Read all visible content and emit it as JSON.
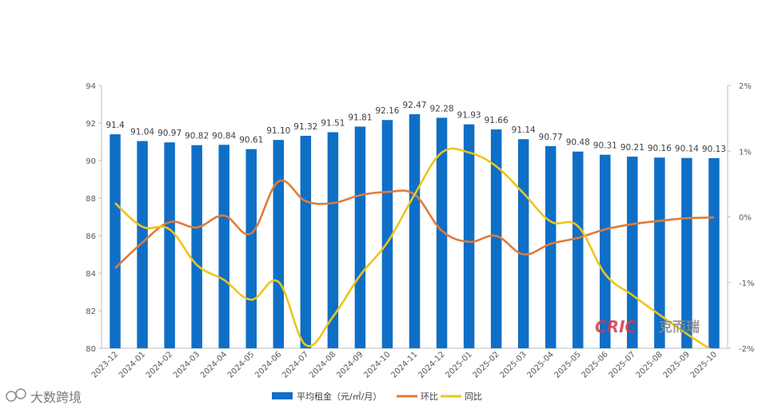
{
  "chart_data": {
    "type": "bar+line",
    "categories": [
      "2023-12",
      "2024-01",
      "2024-02",
      "2024-03",
      "2024-04",
      "2024-05",
      "2024-06",
      "2024-07",
      "2024-08",
      "2024-09",
      "2024-10",
      "2024-11",
      "2024-12",
      "2025-01",
      "2025-02",
      "2025-03",
      "2025-04",
      "2025-05",
      "2025-06",
      "2025-07",
      "2025-08",
      "2025-09",
      "2025-10"
    ],
    "bar_series": {
      "name": "平均租金（元/㎡/月）",
      "values": [
        91.4,
        91.04,
        90.97,
        90.82,
        90.84,
        90.61,
        91.1,
        91.32,
        91.51,
        91.81,
        92.16,
        92.47,
        92.28,
        91.93,
        91.66,
        91.14,
        90.77,
        90.48,
        90.31,
        90.21,
        90.16,
        90.14,
        90.13
      ],
      "labels": [
        "91.4",
        "91.04",
        "90.97",
        "90.82",
        "90.84",
        "90.61",
        "91.10",
        "91.32",
        "91.51",
        "91.81",
        "92.16",
        "92.47",
        "92.28",
        "91.93",
        "91.66",
        "91.14",
        "90.77",
        "90.48",
        "90.31",
        "90.21",
        "90.16",
        "90.14",
        "90.13"
      ],
      "color": "#0f6fc6"
    },
    "line_series": [
      {
        "name": "环比",
        "color": "#e07b39",
        "values": [
          -0.78,
          -0.39,
          -0.08,
          -0.16,
          0.02,
          -0.25,
          0.54,
          0.24,
          0.21,
          0.33,
          0.38,
          0.34,
          -0.21,
          -0.38,
          -0.29,
          -0.57,
          -0.41,
          -0.32,
          -0.19,
          -0.11,
          -0.06,
          -0.02,
          -0.01
        ]
      },
      {
        "name": "同比",
        "color": "#f0c419",
        "values": [
          0.21,
          -0.15,
          -0.19,
          -0.73,
          -0.96,
          -1.26,
          -0.99,
          -1.95,
          -1.52,
          -0.89,
          -0.39,
          0.34,
          0.98,
          0.98,
          0.77,
          0.36,
          -0.07,
          -0.14,
          -0.87,
          -1.19,
          -1.49,
          -1.78,
          -2.05
        ]
      }
    ],
    "y_left": {
      "min": 80,
      "max": 94,
      "step": 2,
      "ticks": [
        "80",
        "82",
        "84",
        "86",
        "88",
        "90",
        "92",
        "94"
      ]
    },
    "y_right": {
      "min": -2,
      "max": 2,
      "step": 1,
      "ticks": [
        "-2%",
        "-1%",
        "0%",
        "1%",
        "2%"
      ]
    },
    "legend": [
      "平均租金（元/㎡/月）",
      "环比",
      "同比"
    ],
    "legend_position": "bottom"
  },
  "watermarks": {
    "brand": "CRIC",
    "brand_cn": "克而瑞",
    "source": "大数跨境"
  }
}
